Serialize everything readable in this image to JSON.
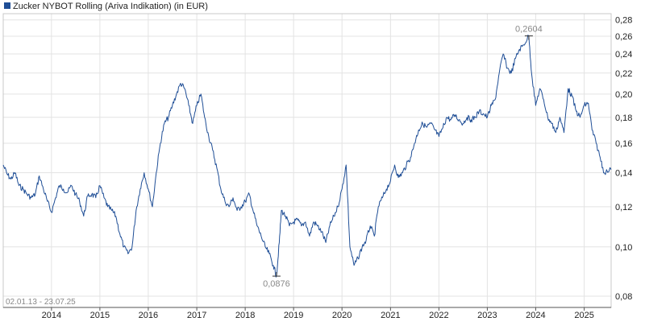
{
  "chart_data": {
    "type": "line",
    "title": "Zucker NYBOT Rolling (Ariva Indikation) (in EUR)",
    "date_range": "02.01.13 - 23.07.25",
    "y_scale": "log",
    "ylim": [
      0.076,
      0.288
    ],
    "xlim": [
      "2013-01-02",
      "2025-07-23"
    ],
    "grid": true,
    "legend": "top-left",
    "line_color": "#1f4e96",
    "yticks": [
      {
        "v": 0.08,
        "label": "0,08"
      },
      {
        "v": 0.1,
        "label": "0,10"
      },
      {
        "v": 0.12,
        "label": "0,12"
      },
      {
        "v": 0.14,
        "label": "0,14"
      },
      {
        "v": 0.16,
        "label": "0,16"
      },
      {
        "v": 0.18,
        "label": "0,18"
      },
      {
        "v": 0.2,
        "label": "0,20"
      },
      {
        "v": 0.22,
        "label": "0,22"
      },
      {
        "v": 0.24,
        "label": "0,24"
      },
      {
        "v": 0.26,
        "label": "0,26"
      },
      {
        "v": 0.28,
        "label": "0,28"
      }
    ],
    "xticks": [
      {
        "x": "2014-01-01",
        "label": "2014"
      },
      {
        "x": "2015-01-01",
        "label": "2015"
      },
      {
        "x": "2016-01-01",
        "label": "2016"
      },
      {
        "x": "2017-01-01",
        "label": "2017"
      },
      {
        "x": "2018-01-01",
        "label": "2018"
      },
      {
        "x": "2019-01-01",
        "label": "2019"
      },
      {
        "x": "2020-01-01",
        "label": "2020"
      },
      {
        "x": "2021-01-01",
        "label": "2021"
      },
      {
        "x": "2022-01-01",
        "label": "2022"
      },
      {
        "x": "2023-01-01",
        "label": "2023"
      },
      {
        "x": "2024-01-01",
        "label": "2024"
      },
      {
        "x": "2025-01-01",
        "label": "2025"
      }
    ],
    "annotations": [
      {
        "x": "2023-11-10",
        "y": 0.2604,
        "label": "0,2604",
        "kind": "max"
      },
      {
        "x": "2018-08-25",
        "y": 0.0876,
        "label": "0,0876",
        "kind": "min"
      }
    ],
    "series": [
      {
        "points": [
          [
            "2013-01-02",
            0.145
          ],
          [
            "2013-02-01",
            0.139
          ],
          [
            "2013-03-01",
            0.136
          ],
          [
            "2013-04-01",
            0.14
          ],
          [
            "2013-05-01",
            0.132
          ],
          [
            "2013-06-01",
            0.13
          ],
          [
            "2013-07-01",
            0.127
          ],
          [
            "2013-08-01",
            0.125
          ],
          [
            "2013-09-01",
            0.127
          ],
          [
            "2013-10-01",
            0.138
          ],
          [
            "2013-11-01",
            0.13
          ],
          [
            "2013-12-01",
            0.123
          ],
          [
            "2014-01-01",
            0.117
          ],
          [
            "2014-02-01",
            0.125
          ],
          [
            "2014-03-01",
            0.132
          ],
          [
            "2014-04-01",
            0.13
          ],
          [
            "2014-05-01",
            0.128
          ],
          [
            "2014-06-01",
            0.132
          ],
          [
            "2014-07-01",
            0.127
          ],
          [
            "2014-08-01",
            0.123
          ],
          [
            "2014-09-01",
            0.115
          ],
          [
            "2014-10-01",
            0.126
          ],
          [
            "2014-11-01",
            0.127
          ],
          [
            "2014-12-01",
            0.125
          ],
          [
            "2015-01-01",
            0.132
          ],
          [
            "2015-02-01",
            0.125
          ],
          [
            "2015-03-01",
            0.12
          ],
          [
            "2015-04-01",
            0.118
          ],
          [
            "2015-05-01",
            0.115
          ],
          [
            "2015-06-01",
            0.106
          ],
          [
            "2015-07-01",
            0.1
          ],
          [
            "2015-08-01",
            0.097
          ],
          [
            "2015-09-01",
            0.1
          ],
          [
            "2015-10-01",
            0.118
          ],
          [
            "2015-11-01",
            0.13
          ],
          [
            "2015-12-01",
            0.14
          ],
          [
            "2016-01-01",
            0.13
          ],
          [
            "2016-02-01",
            0.12
          ],
          [
            "2016-03-01",
            0.14
          ],
          [
            "2016-04-01",
            0.16
          ],
          [
            "2016-05-01",
            0.175
          ],
          [
            "2016-06-01",
            0.18
          ],
          [
            "2016-07-01",
            0.19
          ],
          [
            "2016-08-01",
            0.2
          ],
          [
            "2016-09-01",
            0.21
          ],
          [
            "2016-10-01",
            0.205
          ],
          [
            "2016-11-01",
            0.19
          ],
          [
            "2016-12-01",
            0.175
          ],
          [
            "2017-01-01",
            0.19
          ],
          [
            "2017-02-01",
            0.2
          ],
          [
            "2017-03-01",
            0.18
          ],
          [
            "2017-04-01",
            0.165
          ],
          [
            "2017-05-01",
            0.155
          ],
          [
            "2017-06-01",
            0.143
          ],
          [
            "2017-07-01",
            0.13
          ],
          [
            "2017-08-01",
            0.123
          ],
          [
            "2017-09-01",
            0.12
          ],
          [
            "2017-10-01",
            0.125
          ],
          [
            "2017-11-01",
            0.118
          ],
          [
            "2017-12-01",
            0.12
          ],
          [
            "2018-01-01",
            0.123
          ],
          [
            "2018-02-01",
            0.127
          ],
          [
            "2018-03-01",
            0.118
          ],
          [
            "2018-04-01",
            0.11
          ],
          [
            "2018-05-01",
            0.105
          ],
          [
            "2018-06-01",
            0.1
          ],
          [
            "2018-07-01",
            0.097
          ],
          [
            "2018-08-01",
            0.092
          ],
          [
            "2018-08-25",
            0.0876
          ],
          [
            "2018-09-15",
            0.102
          ],
          [
            "2018-10-01",
            0.118
          ],
          [
            "2018-11-01",
            0.115
          ],
          [
            "2018-12-01",
            0.11
          ],
          [
            "2019-01-01",
            0.112
          ],
          [
            "2019-02-01",
            0.113
          ],
          [
            "2019-03-01",
            0.11
          ],
          [
            "2019-04-01",
            0.112
          ],
          [
            "2019-05-01",
            0.105
          ],
          [
            "2019-06-01",
            0.112
          ],
          [
            "2019-07-01",
            0.11
          ],
          [
            "2019-08-01",
            0.107
          ],
          [
            "2019-09-01",
            0.102
          ],
          [
            "2019-10-01",
            0.11
          ],
          [
            "2019-11-01",
            0.115
          ],
          [
            "2019-12-01",
            0.12
          ],
          [
            "2020-01-01",
            0.13
          ],
          [
            "2020-02-01",
            0.145
          ],
          [
            "2020-03-01",
            0.1
          ],
          [
            "2020-04-01",
            0.092
          ],
          [
            "2020-05-01",
            0.095
          ],
          [
            "2020-06-01",
            0.1
          ],
          [
            "2020-07-01",
            0.103
          ],
          [
            "2020-08-01",
            0.11
          ],
          [
            "2020-09-01",
            0.105
          ],
          [
            "2020-10-01",
            0.12
          ],
          [
            "2020-11-01",
            0.125
          ],
          [
            "2020-12-01",
            0.13
          ],
          [
            "2021-01-01",
            0.135
          ],
          [
            "2021-02-01",
            0.145
          ],
          [
            "2021-03-01",
            0.137
          ],
          [
            "2021-04-01",
            0.14
          ],
          [
            "2021-05-01",
            0.145
          ],
          [
            "2021-06-01",
            0.15
          ],
          [
            "2021-07-01",
            0.16
          ],
          [
            "2021-08-01",
            0.17
          ],
          [
            "2021-09-01",
            0.175
          ],
          [
            "2021-10-01",
            0.172
          ],
          [
            "2021-11-01",
            0.175
          ],
          [
            "2021-12-01",
            0.17
          ],
          [
            "2022-01-01",
            0.165
          ],
          [
            "2022-02-01",
            0.172
          ],
          [
            "2022-03-01",
            0.18
          ],
          [
            "2022-04-01",
            0.178
          ],
          [
            "2022-05-01",
            0.182
          ],
          [
            "2022-06-01",
            0.178
          ],
          [
            "2022-07-01",
            0.175
          ],
          [
            "2022-08-01",
            0.18
          ],
          [
            "2022-09-01",
            0.178
          ],
          [
            "2022-10-01",
            0.18
          ],
          [
            "2022-11-01",
            0.185
          ],
          [
            "2022-12-01",
            0.183
          ],
          [
            "2023-01-01",
            0.18
          ],
          [
            "2023-02-01",
            0.19
          ],
          [
            "2023-03-01",
            0.195
          ],
          [
            "2023-04-01",
            0.22
          ],
          [
            "2023-05-01",
            0.24
          ],
          [
            "2023-06-01",
            0.225
          ],
          [
            "2023-07-01",
            0.22
          ],
          [
            "2023-08-01",
            0.235
          ],
          [
            "2023-09-01",
            0.245
          ],
          [
            "2023-10-01",
            0.25
          ],
          [
            "2023-11-10",
            0.2604
          ],
          [
            "2023-12-01",
            0.22
          ],
          [
            "2024-01-01",
            0.19
          ],
          [
            "2024-02-01",
            0.205
          ],
          [
            "2024-03-01",
            0.195
          ],
          [
            "2024-04-01",
            0.18
          ],
          [
            "2024-05-01",
            0.175
          ],
          [
            "2024-06-01",
            0.168
          ],
          [
            "2024-07-01",
            0.18
          ],
          [
            "2024-08-01",
            0.168
          ],
          [
            "2024-09-01",
            0.205
          ],
          [
            "2024-10-01",
            0.198
          ],
          [
            "2024-11-01",
            0.185
          ],
          [
            "2024-12-01",
            0.18
          ],
          [
            "2025-01-01",
            0.19
          ],
          [
            "2025-02-01",
            0.192
          ],
          [
            "2025-03-01",
            0.17
          ],
          [
            "2025-04-01",
            0.16
          ],
          [
            "2025-05-01",
            0.15
          ],
          [
            "2025-06-01",
            0.14
          ],
          [
            "2025-07-23",
            0.142
          ]
        ]
      }
    ]
  }
}
